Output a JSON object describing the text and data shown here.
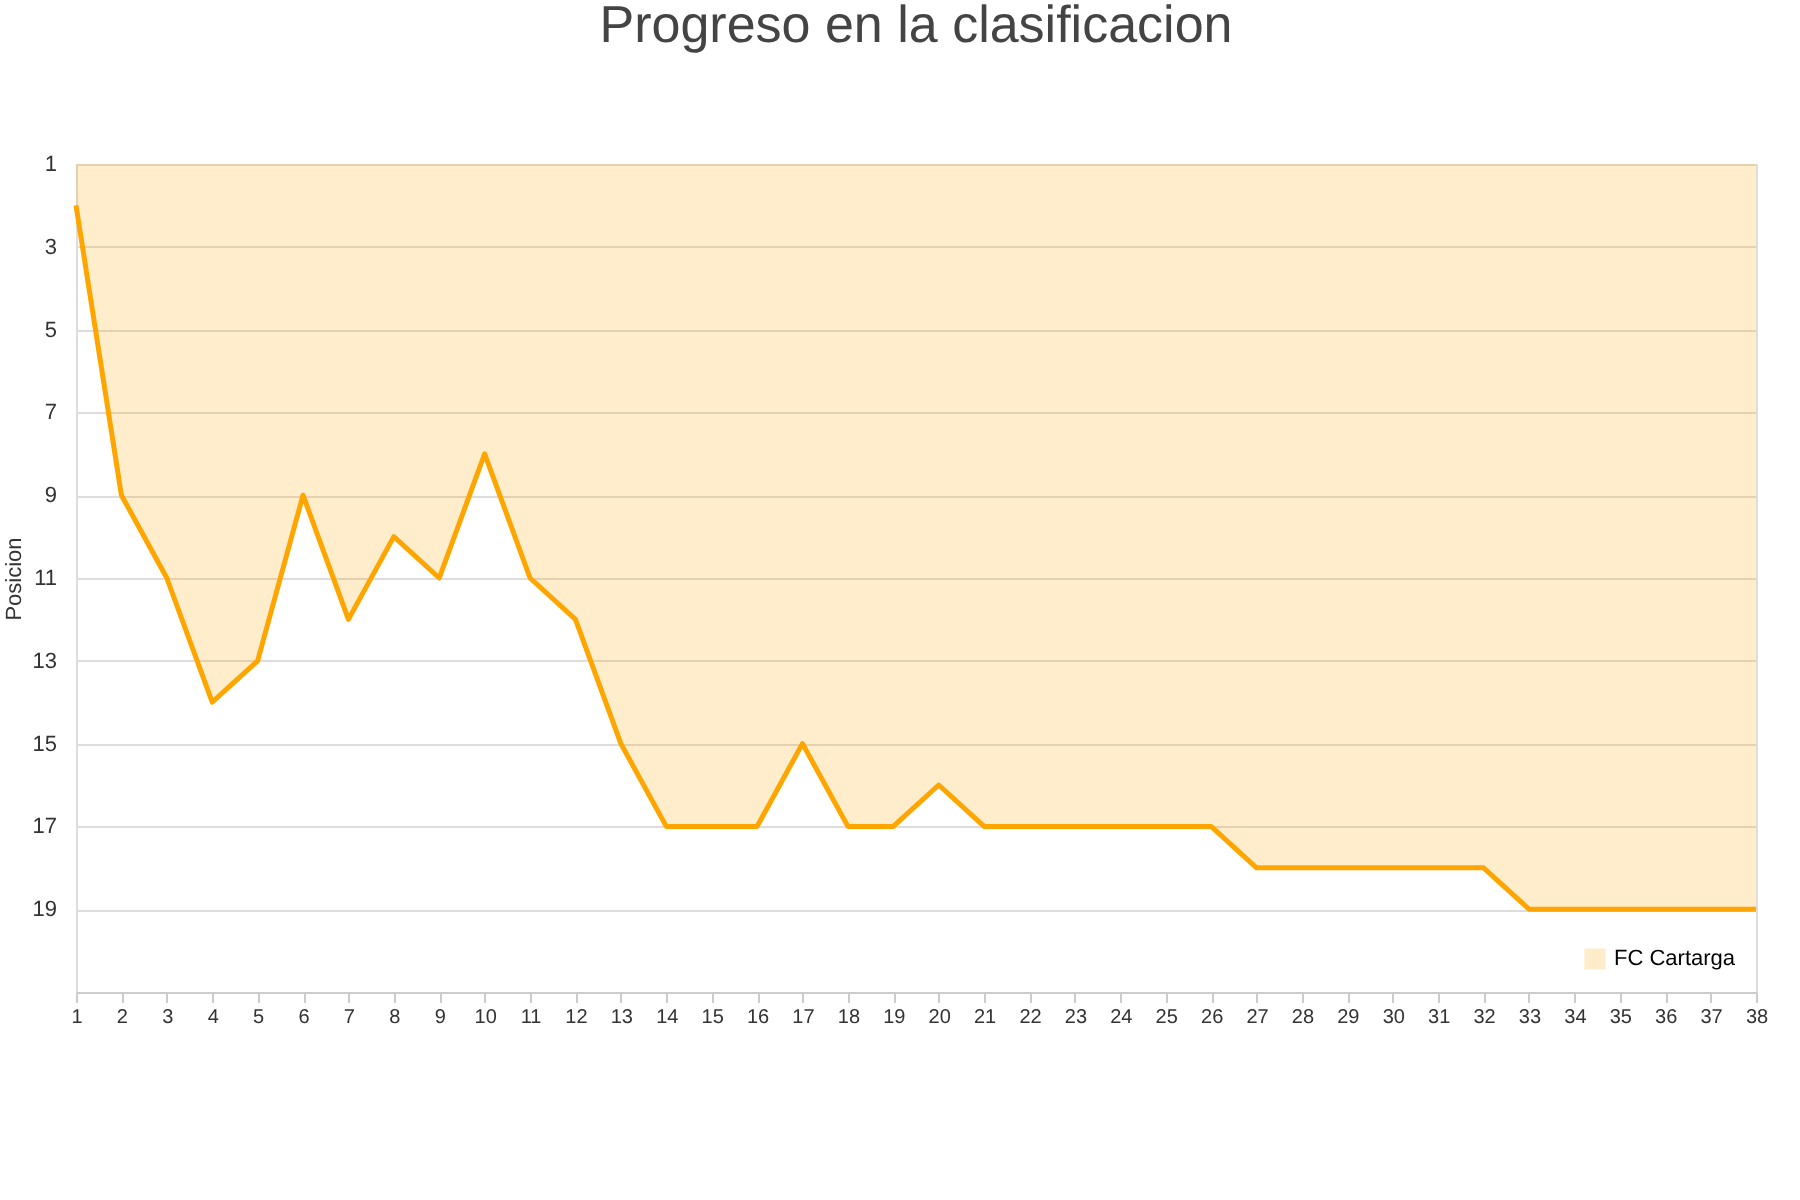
{
  "chart_data": {
    "type": "area",
    "title": "Progreso en la clasificacion",
    "ylabel": "Posicion",
    "x": [
      1,
      2,
      3,
      4,
      5,
      6,
      7,
      8,
      9,
      10,
      11,
      12,
      13,
      14,
      15,
      16,
      17,
      18,
      19,
      20,
      21,
      22,
      23,
      24,
      25,
      26,
      27,
      28,
      29,
      30,
      31,
      32,
      33,
      34,
      35,
      36,
      37,
      38
    ],
    "series": [
      {
        "name": "FC Cartarga",
        "color": "#ffa500",
        "values": [
          2,
          9,
          11,
          14,
          13,
          9,
          12,
          10,
          11,
          8,
          11,
          12,
          15,
          17,
          17,
          17,
          15,
          17,
          17,
          16,
          17,
          17,
          17,
          17,
          17,
          17,
          18,
          18,
          18,
          18,
          18,
          18,
          19,
          19,
          19,
          19,
          19,
          19
        ]
      }
    ],
    "xlim": [
      1,
      38
    ],
    "xticks": [
      1,
      2,
      3,
      4,
      5,
      6,
      7,
      8,
      9,
      10,
      11,
      12,
      13,
      14,
      15,
      16,
      17,
      18,
      19,
      20,
      21,
      22,
      23,
      24,
      25,
      26,
      27,
      28,
      29,
      30,
      31,
      32,
      33,
      34,
      35,
      36,
      37,
      38
    ],
    "ylim": [
      21,
      1
    ],
    "yticks": [
      1,
      3,
      5,
      7,
      9,
      11,
      13,
      15,
      17,
      19
    ],
    "grid": "y",
    "legend": "bottom right"
  }
}
